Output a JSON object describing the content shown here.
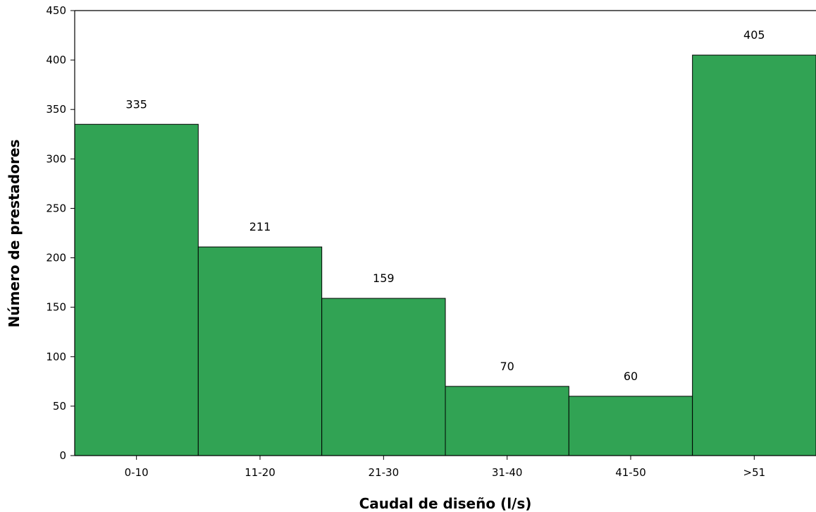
{
  "chart_data": {
    "type": "bar",
    "title": "",
    "xlabel": "Caudal de diseño (l/s)",
    "ylabel": "Número de prestadores",
    "categories": [
      "0-10",
      "11-20",
      "21-30",
      "31-40",
      "41-50",
      ">51"
    ],
    "values": [
      335,
      211,
      159,
      70,
      60,
      405
    ],
    "ylim": [
      0,
      450
    ],
    "yticks": [
      0,
      50,
      100,
      150,
      200,
      250,
      300,
      350,
      400,
      450
    ],
    "bar_color": "#31a354",
    "bar_edge_color": "#000000",
    "grid": false,
    "data_labels": true
  }
}
